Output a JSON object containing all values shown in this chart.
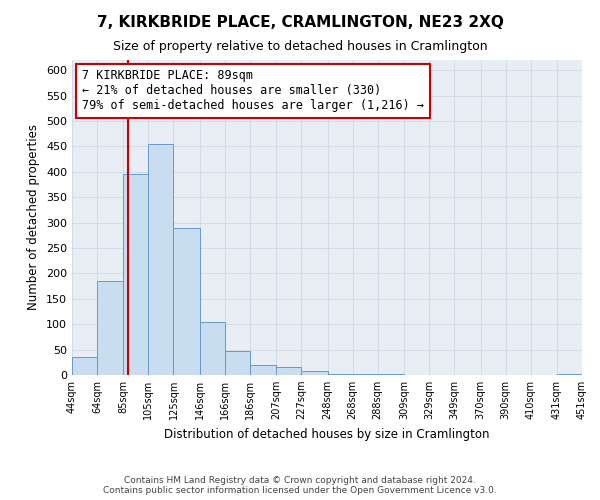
{
  "title": "7, KIRKBRIDE PLACE, CRAMLINGTON, NE23 2XQ",
  "subtitle": "Size of property relative to detached houses in Cramlington",
  "xlabel": "Distribution of detached houses by size in Cramlington",
  "ylabel": "Number of detached properties",
  "bar_edges": [
    44,
    64,
    85,
    105,
    125,
    146,
    166,
    186,
    207,
    227,
    248,
    268,
    288,
    309,
    329,
    349,
    370,
    390,
    410,
    431,
    451
  ],
  "bar_heights": [
    35,
    185,
    395,
    455,
    290,
    105,
    48,
    20,
    15,
    8,
    2,
    1,
    1,
    0,
    0,
    0,
    0,
    0,
    0,
    1
  ],
  "bar_color": "#c8ddf0",
  "bar_edge_color": "#6699cc",
  "property_line_x": 89,
  "property_line_color": "#cc0000",
  "annotation_line1": "7 KIRKBRIDE PLACE: 89sqm",
  "annotation_line2": "← 21% of detached houses are smaller (330)",
  "annotation_line3": "79% of semi-detached houses are larger (1,216) →",
  "annotation_box_color": "#ffffff",
  "annotation_box_edge": "#cc0000",
  "ylim": [
    0,
    620
  ],
  "yticks": [
    0,
    50,
    100,
    150,
    200,
    250,
    300,
    350,
    400,
    450,
    500,
    550,
    600
  ],
  "tick_labels": [
    "44sqm",
    "64sqm",
    "85sqm",
    "105sqm",
    "125sqm",
    "146sqm",
    "166sqm",
    "186sqm",
    "207sqm",
    "227sqm",
    "248sqm",
    "268sqm",
    "288sqm",
    "309sqm",
    "329sqm",
    "349sqm",
    "370sqm",
    "390sqm",
    "410sqm",
    "431sqm",
    "451sqm"
  ],
  "footer": "Contains HM Land Registry data © Crown copyright and database right 2024.\nContains public sector information licensed under the Open Government Licence v3.0.",
  "grid_color": "#d0dce8",
  "background_color": "#e8eef4"
}
